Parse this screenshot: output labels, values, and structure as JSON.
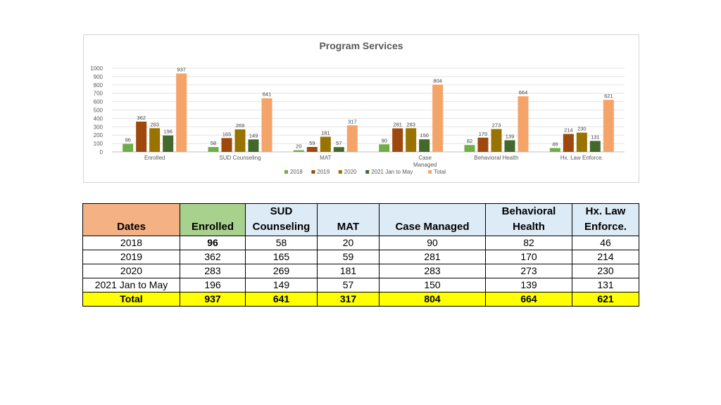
{
  "chart_data": {
    "type": "bar",
    "title": "Program Services",
    "categories": [
      "Enrolled",
      "SUD Counseling",
      "MAT",
      "Case\nManaged",
      "Behavioral Health",
      "Hx. Law Enforce."
    ],
    "series": [
      {
        "name": "2018",
        "color": "#70ad47",
        "values": [
          96,
          58,
          20,
          90,
          82,
          46
        ]
      },
      {
        "name": "2019",
        "color": "#9e480e",
        "values": [
          362,
          165,
          59,
          281,
          170,
          214
        ]
      },
      {
        "name": "2020",
        "color": "#997300",
        "values": [
          283,
          269,
          181,
          283,
          273,
          230
        ]
      },
      {
        "name": "2021 Jan to May",
        "color": "#43682b",
        "values": [
          196,
          149,
          57,
          150,
          139,
          131
        ]
      },
      {
        "name": "Total",
        "color": "#f4a469",
        "values": [
          937,
          641,
          317,
          804,
          664,
          621
        ]
      }
    ],
    "ylim": [
      0,
      1000
    ],
    "yticks": [
      0,
      100,
      200,
      300,
      400,
      500,
      600,
      700,
      800,
      900,
      1000
    ],
    "grid": true,
    "legend_position": "bottom"
  },
  "table": {
    "headers": [
      "Dates",
      "Enrolled",
      "SUD\nCounseling",
      "MAT",
      "Case Managed",
      "Behavioral\nHealth",
      "Hx. Law\nEnforce."
    ],
    "rows": [
      [
        "2018",
        "96",
        "58",
        "20",
        "90",
        "82",
        "46"
      ],
      [
        "2019",
        "362",
        "165",
        "59",
        "281",
        "170",
        "214"
      ],
      [
        "2020",
        "283",
        "269",
        "181",
        "283",
        "273",
        "230"
      ],
      [
        "2021 Jan to May",
        "196",
        "149",
        "57",
        "150",
        "139",
        "131"
      ]
    ],
    "total": [
      "Total",
      "937",
      "641",
      "317",
      "804",
      "664",
      "621"
    ],
    "colors": {
      "dates_header": "#f4b183",
      "enrolled_header": "#a9d18e",
      "other_header": "#ddebf7",
      "total_row": "#ffff00"
    }
  }
}
